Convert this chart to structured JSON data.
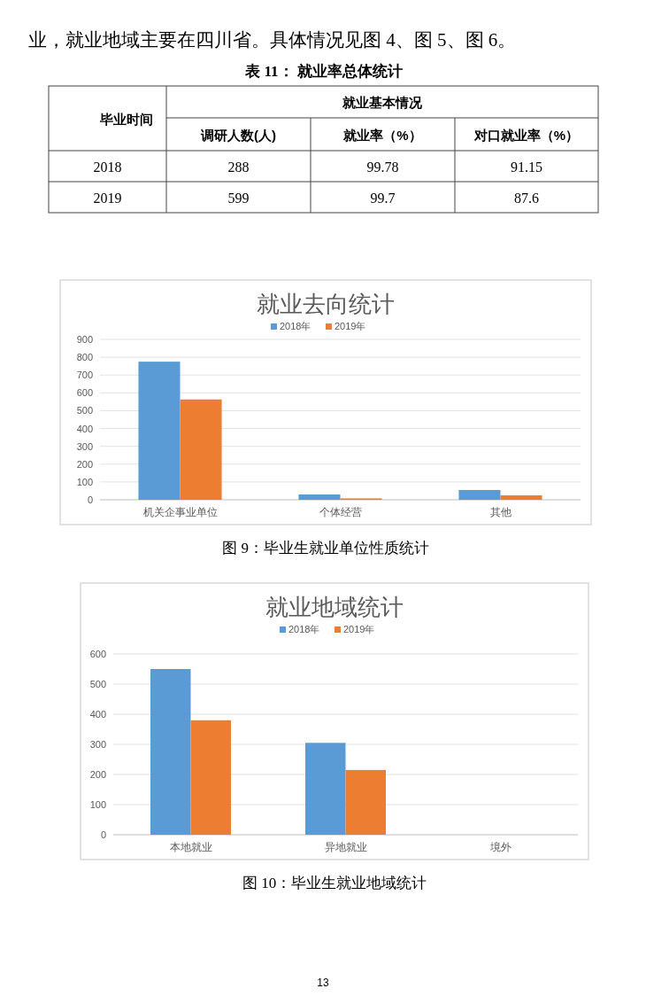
{
  "chart_data": [
    {
      "type": "other",
      "subtitle": "业，就业地域主要在四川省。具体情况见图 4、图 5、图 6。",
      "title": "表 11： 就业率总体统计",
      "annotations": [
        "毕业时间",
        "就业基本情况",
        "调研人数(人)",
        "就业率（%）",
        "对口就业率（%）",
        "2018",
        "288",
        "99.78",
        "91.15",
        "2019",
        "599",
        "99.7",
        "87.6"
      ]
    },
    {
      "type": "bar",
      "title": "就业去向统计",
      "categories": [
        "机关企事业单位",
        "个体经营",
        "其他"
      ],
      "series": [
        {
          "name": "2018年",
          "color": "#5b9bd5",
          "values": [
            775,
            30,
            55
          ]
        },
        {
          "name": "2019年",
          "color": "#ed7d31",
          "values": [
            563,
            8,
            25
          ]
        }
      ],
      "ylim": [
        0,
        900
      ],
      "yticks": [
        0,
        100,
        200,
        300,
        400,
        500,
        600,
        700,
        800,
        900
      ],
      "grid": "y",
      "legend": "top",
      "annotations": [
        "图 9：毕业生就业单位性质统计"
      ]
    },
    {
      "type": "bar",
      "title": "就业地域统计",
      "categories": [
        "本地就业",
        "异地就业",
        "境外"
      ],
      "series": [
        {
          "name": "2018年",
          "color": "#5b9bd5",
          "values": [
            550,
            305,
            0
          ]
        },
        {
          "name": "2019年",
          "color": "#ed7d31",
          "values": [
            380,
            215,
            0
          ]
        }
      ],
      "ylim": [
        0,
        600
      ],
      "yticks": [
        0,
        100,
        200,
        300,
        400,
        500,
        600
      ],
      "grid": "y",
      "legend": "top",
      "annotations": [
        "图 10：毕业生就业地域统计",
        "13"
      ]
    }
  ]
}
